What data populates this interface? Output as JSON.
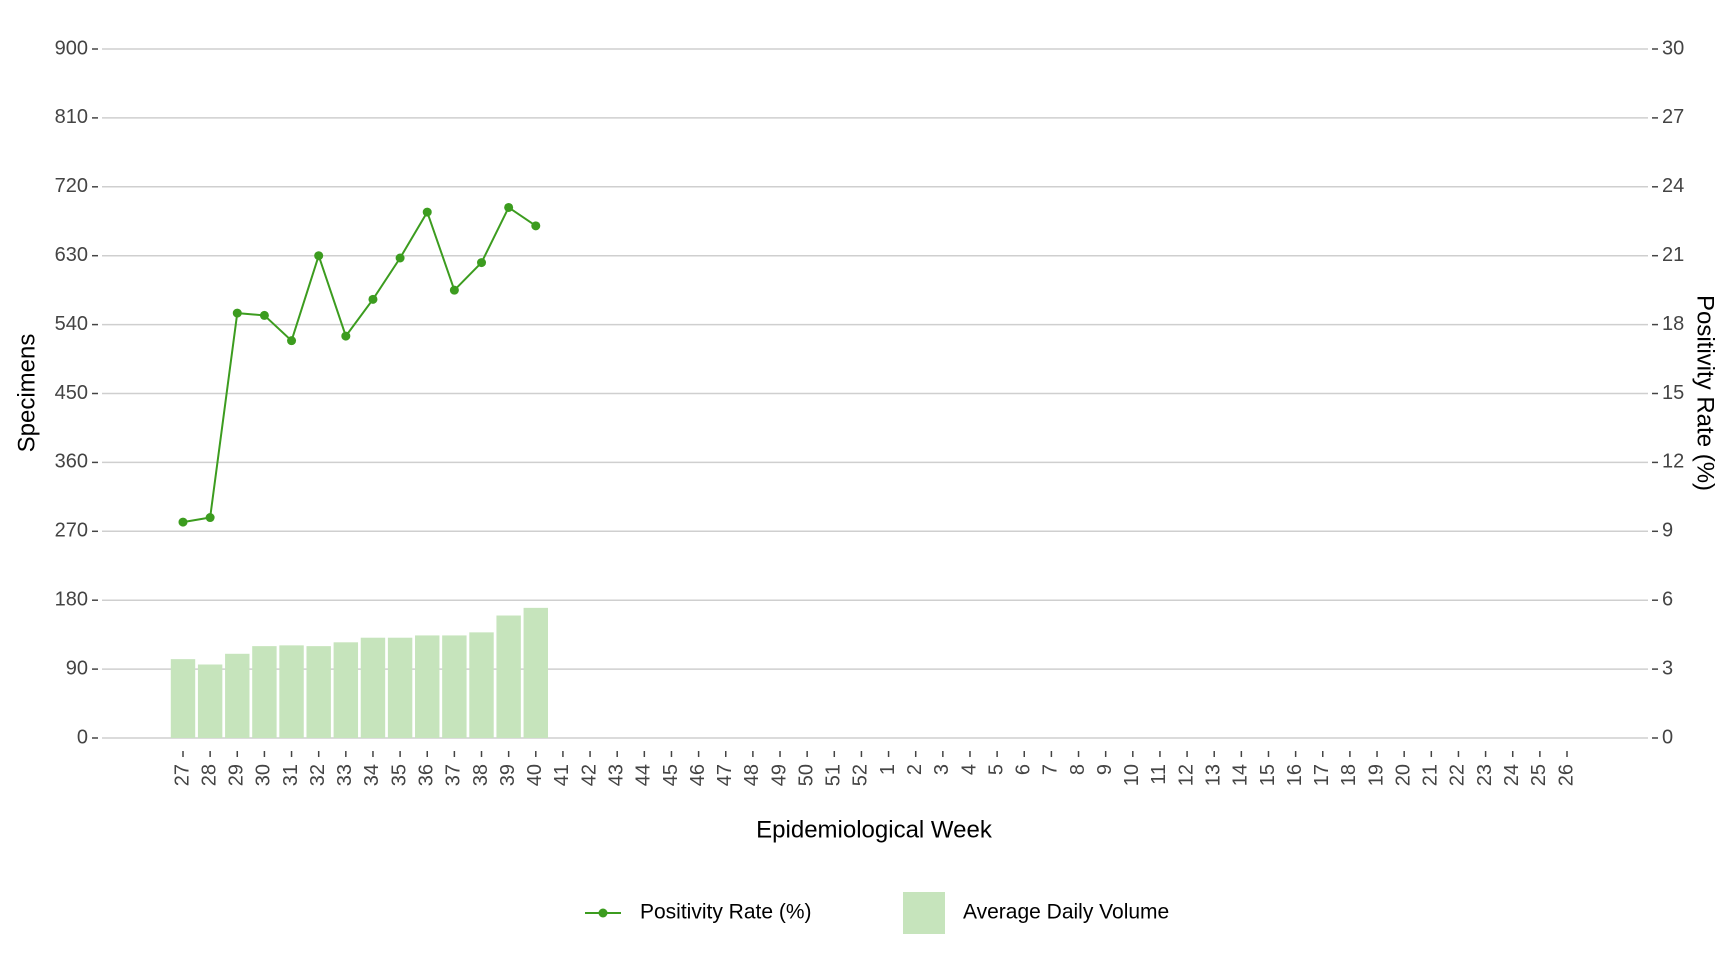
{
  "chart_data": {
    "type": "bar-line",
    "xlabel": "Epidemiological Week",
    "ylabel": "Specimens",
    "y2label": "Positivity Rate (%)",
    "categories": [
      "27",
      "28",
      "29",
      "30",
      "31",
      "32",
      "33",
      "34",
      "35",
      "36",
      "37",
      "38",
      "39",
      "40",
      "41",
      "42",
      "43",
      "44",
      "45",
      "46",
      "47",
      "48",
      "49",
      "50",
      "51",
      "52",
      "1",
      "2",
      "3",
      "4",
      "5",
      "6",
      "7",
      "8",
      "9",
      "10",
      "11",
      "12",
      "13",
      "14",
      "15",
      "16",
      "17",
      "18",
      "19",
      "20",
      "21",
      "22",
      "23",
      "24",
      "25",
      "26"
    ],
    "series": [
      {
        "name": "Positivity Rate (%)",
        "type": "line",
        "axis": "y2",
        "color": "#3c9c1f",
        "values": [
          9.4,
          9.6,
          18.5,
          18.4,
          17.3,
          21.0,
          17.5,
          19.1,
          20.9,
          22.9,
          19.5,
          20.7,
          23.1,
          22.3,
          null,
          null,
          null,
          null,
          null,
          null,
          null,
          null,
          null,
          null,
          null,
          null,
          null,
          null,
          null,
          null,
          null,
          null,
          null,
          null,
          null,
          null,
          null,
          null,
          null,
          null,
          null,
          null,
          null,
          null,
          null,
          null,
          null,
          null,
          null,
          null,
          null,
          null
        ]
      },
      {
        "name": "Average Daily Volume",
        "type": "bar",
        "axis": "y",
        "color": "#c6e4bc",
        "values": [
          103,
          96,
          110,
          120,
          121,
          120,
          125,
          131,
          131,
          134,
          134,
          138,
          160,
          170,
          null,
          null,
          null,
          null,
          null,
          null,
          null,
          null,
          null,
          null,
          null,
          null,
          null,
          null,
          null,
          null,
          null,
          null,
          null,
          null,
          null,
          null,
          null,
          null,
          null,
          null,
          null,
          null,
          null,
          null,
          null,
          null,
          null,
          null,
          null,
          null,
          null,
          null
        ]
      }
    ],
    "ylim": [
      0,
      900
    ],
    "yticks": [
      0,
      90,
      180,
      270,
      360,
      450,
      540,
      630,
      720,
      810,
      900
    ],
    "y2lim": [
      0,
      30
    ],
    "y2ticks": [
      0,
      3,
      6,
      9,
      12,
      15,
      18,
      21,
      24,
      27,
      30
    ],
    "grid": true,
    "legend": "bottom"
  }
}
